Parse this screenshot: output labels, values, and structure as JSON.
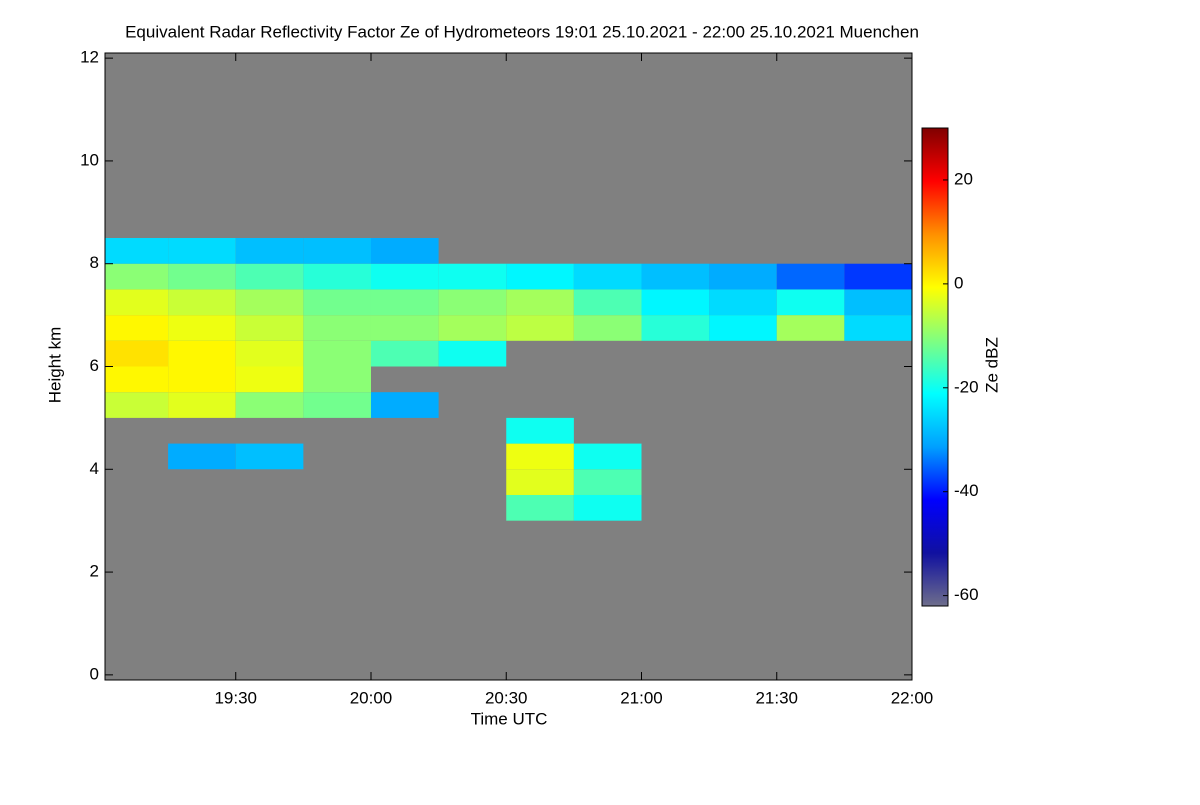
{
  "chart_data": {
    "type": "heatmap",
    "title": "Equivalent Radar Reflectivity Factor Ze of Hydrometeors   19:01 25.10.2021 - 22:00 25.10.2021 Muenchen",
    "x_label": "Time UTC",
    "y_label": "Height km",
    "colorbar_label": "Ze dBZ",
    "xlim": [
      19.0167,
      22.0
    ],
    "xticks": [
      {
        "value": 19.5,
        "label": "19:30"
      },
      {
        "value": 20,
        "label": "20:00"
      },
      {
        "value": 20.5,
        "label": "20:30"
      },
      {
        "value": 21,
        "label": "21:00"
      },
      {
        "value": 21.5,
        "label": "21:30"
      },
      {
        "value": 22,
        "label": "22:00"
      }
    ],
    "ylim": [
      -0.1,
      12.1
    ],
    "yticks": [
      0,
      2,
      4,
      6,
      8,
      10,
      12
    ],
    "zlim": [
      -62,
      30
    ],
    "zticks": [
      -60,
      -40,
      -20,
      0,
      20
    ],
    "background": "#808080",
    "colormap": [
      "#6e6e8c",
      "#1010a0",
      "#0000ff",
      "#00a0ff",
      "#00ffff",
      "#80ff80",
      "#ffff00",
      "#ff9000",
      "#ff0000",
      "#800000"
    ],
    "xbins": [
      19.0,
      19.25,
      19.5,
      19.75,
      20.0,
      20.25,
      20.5,
      20.75,
      21.0,
      21.25,
      21.5,
      21.75,
      22.0
    ],
    "ybins": [
      0,
      0.5,
      1,
      1.5,
      2,
      2.5,
      3,
      3.5,
      4,
      4.5,
      5,
      5.5,
      6,
      6.5,
      7,
      7.5,
      8,
      8.5,
      9,
      9.5,
      10,
      10.5,
      11,
      11.5,
      12
    ],
    "z": [
      [
        null,
        null,
        null,
        null,
        null,
        null,
        null,
        null,
        null,
        null,
        null,
        null
      ],
      [
        null,
        null,
        null,
        null,
        null,
        null,
        null,
        null,
        null,
        null,
        null,
        null
      ],
      [
        null,
        null,
        null,
        null,
        null,
        null,
        null,
        null,
        null,
        null,
        null,
        null
      ],
      [
        null,
        null,
        null,
        null,
        null,
        null,
        null,
        null,
        null,
        null,
        null,
        null
      ],
      [
        null,
        null,
        null,
        null,
        null,
        null,
        null,
        null,
        null,
        null,
        null,
        null
      ],
      [
        null,
        null,
        null,
        null,
        null,
        null,
        null,
        null,
        null,
        null,
        null,
        null
      ],
      [
        null,
        null,
        null,
        null,
        null,
        null,
        -15,
        -20,
        null,
        null,
        null,
        null
      ],
      [
        null,
        null,
        null,
        null,
        null,
        null,
        -3,
        -15,
        null,
        null,
        null,
        null
      ],
      [
        null,
        -30,
        -28,
        null,
        null,
        null,
        -2,
        -20,
        null,
        null,
        null,
        null
      ],
      [
        null,
        null,
        null,
        null,
        null,
        null,
        -20,
        null,
        null,
        null,
        null,
        null
      ],
      [
        -5,
        -3,
        -10,
        -12,
        -30,
        null,
        null,
        null,
        null,
        null,
        null,
        null
      ],
      [
        0,
        0,
        -2,
        -10,
        null,
        null,
        null,
        null,
        null,
        null,
        null,
        null
      ],
      [
        2,
        0,
        -3,
        -10,
        -15,
        -20,
        null,
        null,
        null,
        null,
        null,
        null
      ],
      [
        0,
        -2,
        -5,
        -10,
        -10,
        -8,
        -6,
        -10,
        -18,
        -22,
        -8,
        -25
      ],
      [
        -3,
        -5,
        -8,
        -12,
        -12,
        -10,
        -8,
        -15,
        -22,
        -25,
        -20,
        -28
      ],
      [
        -10,
        -12,
        -15,
        -18,
        -20,
        -20,
        -22,
        -25,
        -28,
        -30,
        -35,
        -38
      ],
      [
        -25,
        -25,
        -28,
        -28,
        -30,
        null,
        null,
        null,
        null,
        null,
        null,
        null
      ],
      [
        null,
        null,
        null,
        null,
        null,
        null,
        null,
        null,
        null,
        null,
        null,
        null
      ],
      [
        null,
        null,
        null,
        null,
        null,
        null,
        null,
        null,
        null,
        null,
        null,
        null
      ],
      [
        null,
        null,
        null,
        null,
        null,
        null,
        null,
        null,
        null,
        null,
        null,
        null
      ],
      [
        null,
        null,
        null,
        null,
        null,
        null,
        null,
        null,
        null,
        null,
        null,
        null
      ],
      [
        null,
        null,
        null,
        null,
        null,
        null,
        null,
        null,
        null,
        null,
        null,
        null
      ],
      [
        null,
        null,
        null,
        null,
        null,
        null,
        null,
        null,
        null,
        null,
        null,
        null
      ],
      [
        null,
        null,
        null,
        null,
        null,
        null,
        null,
        null,
        null,
        null,
        null,
        null
      ]
    ]
  }
}
